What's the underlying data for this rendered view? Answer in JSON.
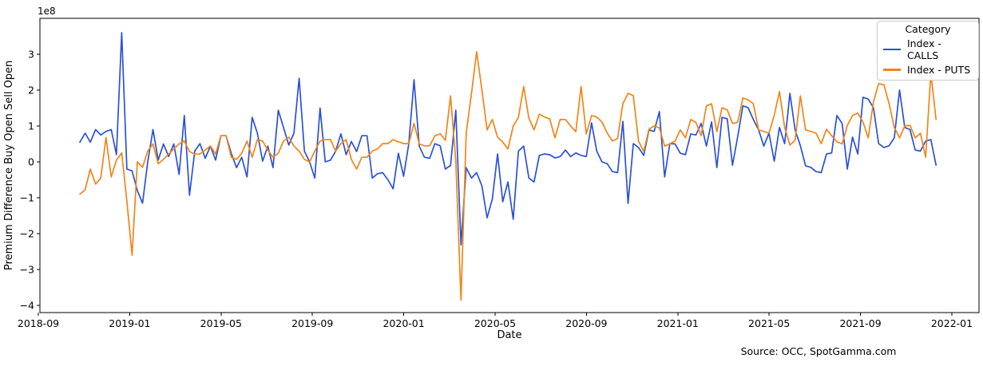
{
  "chart_data": {
    "type": "line",
    "title": "",
    "xlabel": "Date",
    "ylabel": "Premium Difference Buy Open Sell Open",
    "offset_label": "1e8",
    "unit_scale": "1e8",
    "legend_title": "Category",
    "legend_position": "upper right",
    "grid": "off",
    "source": "Source: OCC, SpotGamma.com",
    "x_interval": "weekly",
    "x_start_date": "2018-10-26",
    "x_start_month": 1.82,
    "x_step_month": 0.2286,
    "x_domain_months": [
      0.07,
      41.19
    ],
    "y_domain": [
      -4.2,
      4.0
    ],
    "x_ticks": [
      {
        "label": "2018-09",
        "month": 0
      },
      {
        "label": "2019-01",
        "month": 4
      },
      {
        "label": "2019-05",
        "month": 8
      },
      {
        "label": "2019-09",
        "month": 12
      },
      {
        "label": "2020-01",
        "month": 16
      },
      {
        "label": "2020-05",
        "month": 20
      },
      {
        "label": "2020-09",
        "month": 24
      },
      {
        "label": "2021-01",
        "month": 28
      },
      {
        "label": "2021-05",
        "month": 32
      },
      {
        "label": "2021-09",
        "month": 36
      },
      {
        "label": "2022-01",
        "month": 40
      }
    ],
    "y_ticks": [
      {
        "label": "3",
        "value": 3
      },
      {
        "label": "2",
        "value": 2
      },
      {
        "label": "1",
        "value": 1
      },
      {
        "label": "0",
        "value": 0
      },
      {
        "label": "−1",
        "value": -1
      },
      {
        "label": "−2",
        "value": -2
      },
      {
        "label": "−3",
        "value": -3
      },
      {
        "label": "−4",
        "value": -4
      }
    ],
    "series": [
      {
        "name": "Index - CALLS",
        "color": "#2b51d8",
        "values": [
          0.55,
          0.8,
          0.55,
          0.9,
          0.75,
          0.85,
          0.9,
          0.2,
          3.6,
          -0.2,
          -0.25,
          -0.8,
          -1.15,
          0.0,
          0.9,
          0.05,
          0.5,
          0.15,
          0.5,
          -0.35,
          1.29,
          -0.93,
          0.3,
          0.51,
          0.1,
          0.44,
          0.05,
          0.73,
          0.73,
          0.24,
          -0.16,
          0.13,
          -0.42,
          1.24,
          0.8,
          0.02,
          0.44,
          -0.16,
          1.44,
          0.96,
          0.47,
          0.8,
          2.33,
          0.3,
          0.0,
          -0.45,
          1.5,
          0.0,
          0.05,
          0.3,
          0.78,
          0.2,
          0.57,
          0.29,
          0.73,
          0.73,
          -0.45,
          -0.33,
          -0.3,
          -0.5,
          -0.75,
          0.24,
          -0.4,
          0.5,
          2.29,
          0.44,
          0.13,
          0.1,
          0.51,
          0.45,
          -0.2,
          -0.1,
          1.44,
          -2.31,
          -0.16,
          -0.45,
          -0.3,
          -0.67,
          -1.56,
          -1.04,
          0.22,
          -1.11,
          -0.56,
          -1.6,
          0.3,
          0.44,
          -0.45,
          -0.56,
          0.18,
          0.22,
          0.2,
          0.11,
          0.15,
          0.33,
          0.15,
          0.25,
          0.18,
          0.15,
          1.09,
          0.3,
          0.0,
          -0.05,
          -0.27,
          -0.3,
          1.13,
          -1.16,
          0.51,
          0.4,
          0.18,
          0.89,
          0.85,
          1.4,
          -0.42,
          0.51,
          0.5,
          0.24,
          0.2,
          0.78,
          0.75,
          1.07,
          0.44,
          1.11,
          -0.16,
          1.24,
          1.2,
          -0.09,
          0.7,
          1.56,
          1.51,
          1.18,
          0.89,
          0.44,
          0.8,
          0.02,
          0.96,
          0.51,
          1.91,
          0.89,
          0.45,
          -0.11,
          -0.15,
          -0.27,
          -0.3,
          0.22,
          0.25,
          1.29,
          1.07,
          -0.2,
          0.69,
          0.22,
          1.8,
          1.75,
          1.51,
          0.51,
          0.4,
          0.45,
          0.67,
          2.0,
          0.96,
          0.9,
          0.33,
          0.3,
          0.58,
          0.62,
          -0.09
        ]
      },
      {
        "name": "Index - PUTS",
        "color": "#f28518",
        "values": [
          -0.9,
          -0.78,
          -0.2,
          -0.62,
          -0.45,
          0.68,
          -0.42,
          0.05,
          0.25,
          -1.1,
          -2.6,
          0.0,
          -0.15,
          0.3,
          0.5,
          -0.05,
          0.07,
          0.22,
          0.36,
          0.5,
          0.58,
          0.29,
          0.22,
          0.22,
          0.33,
          0.44,
          0.22,
          0.73,
          0.73,
          0.13,
          0.07,
          0.24,
          0.58,
          0.13,
          0.62,
          0.58,
          0.33,
          0.13,
          0.24,
          0.58,
          0.69,
          0.44,
          0.3,
          0.07,
          0.0,
          0.3,
          0.58,
          0.62,
          0.62,
          0.3,
          0.51,
          0.62,
          0.07,
          -0.2,
          0.13,
          0.13,
          0.3,
          0.36,
          0.51,
          0.51,
          0.62,
          0.56,
          0.51,
          0.51,
          1.07,
          0.5,
          0.45,
          0.45,
          0.73,
          0.78,
          0.6,
          1.84,
          0.02,
          -3.85,
          0.8,
          1.9,
          3.07,
          2.0,
          0.89,
          1.18,
          0.69,
          0.55,
          0.36,
          1.0,
          1.24,
          2.1,
          1.22,
          0.89,
          1.33,
          1.25,
          1.2,
          0.67,
          1.18,
          1.18,
          1.0,
          0.84,
          2.1,
          0.78,
          1.29,
          1.25,
          1.11,
          0.8,
          0.58,
          0.65,
          1.62,
          1.91,
          1.85,
          0.58,
          0.29,
          0.91,
          1.0,
          0.95,
          0.44,
          0.5,
          0.58,
          0.89,
          0.67,
          1.18,
          1.1,
          0.73,
          1.56,
          1.62,
          0.84,
          1.51,
          1.45,
          1.07,
          1.1,
          1.78,
          1.73,
          1.62,
          0.89,
          0.85,
          0.8,
          1.3,
          1.96,
          0.96,
          0.47,
          0.6,
          1.84,
          0.89,
          0.85,
          0.8,
          0.51,
          0.91,
          0.73,
          0.56,
          0.5,
          1.02,
          1.29,
          1.36,
          1.11,
          0.67,
          1.67,
          2.18,
          2.15,
          1.62,
          0.96,
          0.67,
          1.0,
          1.02,
          0.67,
          0.8,
          0.13,
          2.47,
          1.18
        ]
      }
    ]
  }
}
